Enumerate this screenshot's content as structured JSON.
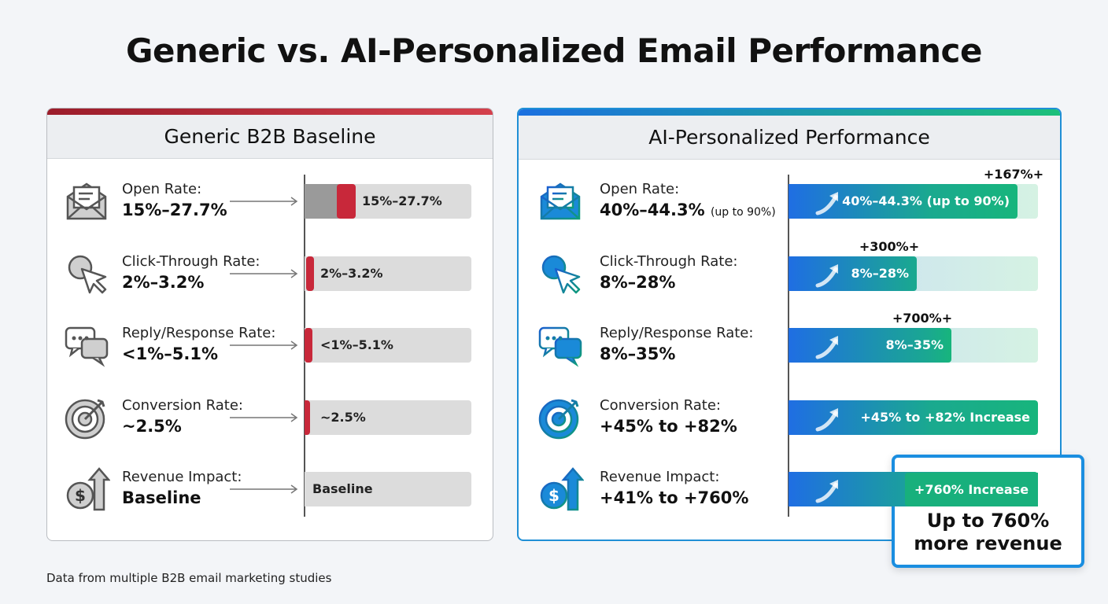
{
  "title": "Generic vs. AI-Personalized Email Performance",
  "panels": [
    {
      "title": "Generic B2B Baseline",
      "rows": [
        {
          "label": "Open Rate:",
          "value": "15%–27.7%",
          "bar_label": "15%–27.7%"
        },
        {
          "label": "Click-Through Rate:",
          "value": "2%–3.2%",
          "bar_label": "2%–3.2%"
        },
        {
          "label": "Reply/Response Rate:",
          "value": "<1%–5.1%",
          "bar_label": "<1%–5.1%"
        },
        {
          "label": "Conversion Rate:",
          "value": "~2.5%",
          "bar_label": "~2.5%"
        },
        {
          "label": "Revenue Impact:",
          "value": "Baseline",
          "bar_label": "Baseline"
        }
      ]
    },
    {
      "title": "AI-Personalized Performance",
      "rows": [
        {
          "label": "Open Rate:",
          "value": "40%–44.3%",
          "note": "(up to 90%)",
          "bar_label": "40%–44.3% (up to 90%)",
          "growth": "+167%+"
        },
        {
          "label": "Click-Through Rate:",
          "value": "8%–28%",
          "bar_label": "8%–28%",
          "growth": "+300%+"
        },
        {
          "label": "Reply/Response Rate:",
          "value": "8%–35%",
          "bar_label": "8%–35%",
          "growth": "+700%+"
        },
        {
          "label": "Conversion Rate:",
          "value": "+45% to +82%",
          "bar_label": "+45% to +82% Increase"
        },
        {
          "label": "Revenue Impact:",
          "value": "+41% to +760%",
          "bar_label": "+760% Increase"
        }
      ]
    }
  ],
  "callout": {
    "lines": [
      "Up to 760%",
      "more revenue"
    ]
  },
  "footnote": "Data from multiple B2B email marketing studies"
}
